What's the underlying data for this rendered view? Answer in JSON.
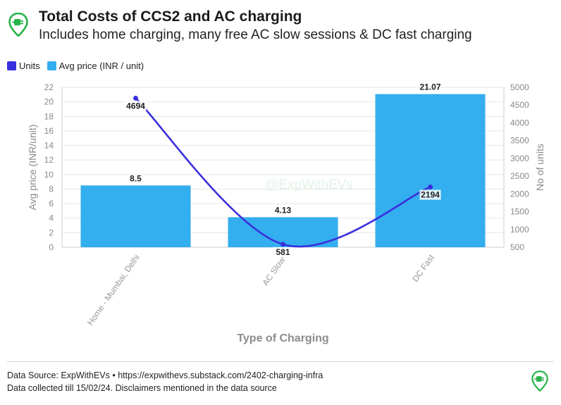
{
  "header": {
    "title": "Total Costs of CCS2 and AC charging",
    "subtitle": "Includes home charging, many free AC slow sessions & DC fast charging"
  },
  "footer": {
    "source": "Data Source: ExpWithEVs • https://expwithevs.substack.com/2402-charging-infra",
    "note": "Data collected till 15/02/24. Disclaimers mentioned in the data source"
  },
  "watermark": "@ExpWithEVs",
  "icons": {
    "logo": "ev-charging-pin-icon"
  },
  "colors": {
    "bars": "#33aeef",
    "line": "#3a2fdc",
    "grid": "#e6e6e6",
    "axis_text": "#888888"
  },
  "chart_data": {
    "type": "bar+line",
    "categories": [
      "Home - Mumbai, Delhi",
      "AC Slow*",
      "DC Fast"
    ],
    "series": [
      {
        "name": "Units",
        "type": "line",
        "axis": "right",
        "values": [
          4694,
          581,
          2194
        ]
      },
      {
        "name": "Avg price (INR / unit)",
        "type": "bar",
        "axis": "left",
        "values": [
          8.5,
          4.13,
          21.07
        ]
      }
    ],
    "data_labels": {
      "bars": [
        "8.5",
        "4.13",
        "21.07"
      ],
      "line": [
        "4694",
        "581",
        "2194"
      ]
    },
    "xlabel": "Type of Charging",
    "ylabel_left": "Avg price (INR/unit)",
    "ylabel_right": "No of units",
    "ylim_left": [
      0,
      22
    ],
    "yticks_left": [
      "0",
      "2",
      "4",
      "6",
      "8",
      "10",
      "12",
      "14",
      "16",
      "18",
      "20",
      "22"
    ],
    "ylim_right": [
      500,
      5000
    ],
    "yticks_right": [
      "500",
      "1000",
      "1500",
      "2000",
      "2500",
      "3000",
      "3500",
      "4000",
      "4500",
      "5000"
    ],
    "legend": "top-left",
    "grid": true
  }
}
